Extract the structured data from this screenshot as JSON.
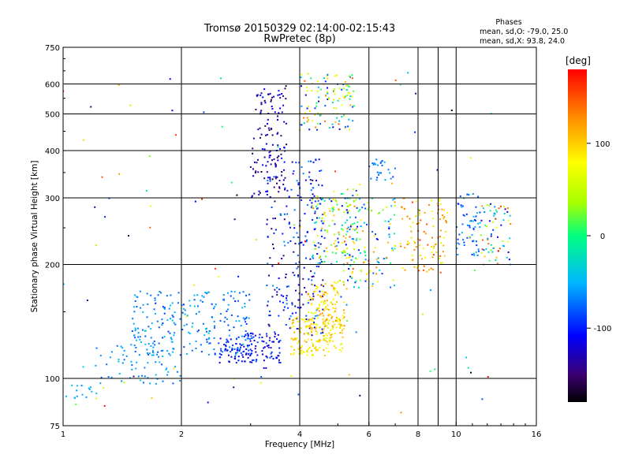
{
  "chart_data": {
    "type": "scatter",
    "title": "Tromsø 20150329 02:14:00-02:15:43",
    "subtitle": "RwPretec (8p)",
    "xlabel": "Frequency [MHz]",
    "ylabel": "Stationary phase Virtual Height [km]",
    "x_scale": "log",
    "y_scale": "log",
    "xlim": [
      1,
      16
    ],
    "ylim": [
      75,
      750
    ],
    "x_ticks": [
      1,
      2,
      4,
      6,
      8,
      10,
      16
    ],
    "x_gridlines": [
      2,
      4,
      6,
      8,
      9,
      10
    ],
    "y_ticks": [
      75,
      100,
      200,
      300,
      400,
      500,
      600,
      750
    ],
    "y_gridlines": [
      100,
      200,
      300,
      400,
      500,
      600
    ],
    "grid": true,
    "stats": {
      "heading": "Phases",
      "line_o": "mean, sd,O: -79.0, 25.0",
      "line_x": "mean, sd,X:  93.8, 24.0"
    },
    "colorbar": {
      "label": "[deg]",
      "range": [
        -180,
        180
      ],
      "ticks": [
        "100",
        "0",
        "-100"
      ],
      "tick_values": [
        100,
        0,
        -100
      ],
      "colormap": "rainbow"
    },
    "clusters": [
      {
        "x": [
          1.0,
          1.25
        ],
        "y": [
          88,
          100
        ],
        "phase": [
          -60,
          -40
        ],
        "n": 14
      },
      {
        "x": [
          1.2,
          2.0
        ],
        "y": [
          96,
          125
        ],
        "phase": [
          -80,
          -40
        ],
        "n": 70
      },
      {
        "x": [
          1.5,
          3.0
        ],
        "y": [
          115,
          170
        ],
        "phase": [
          -90,
          -40
        ],
        "n": 230
      },
      {
        "x": [
          2.5,
          3.6
        ],
        "y": [
          110,
          132
        ],
        "phase": [
          -130,
          -80
        ],
        "n": 140
      },
      {
        "x": [
          3.0,
          3.7
        ],
        "y": [
          300,
          600
        ],
        "phase": [
          -170,
          -100
        ],
        "n": 130
      },
      {
        "x": [
          3.3,
          4.6
        ],
        "y": [
          130,
          380
        ],
        "phase": [
          -150,
          -60
        ],
        "n": 240
      },
      {
        "x": [
          3.8,
          5.2
        ],
        "y": [
          115,
          145
        ],
        "phase": [
          60,
          120
        ],
        "n": 160
      },
      {
        "x": [
          4.2,
          5.2
        ],
        "y": [
          135,
          180
        ],
        "phase": [
          60,
          130
        ],
        "n": 120
      },
      {
        "x": [
          4.0,
          5.5
        ],
        "y": [
          450,
          640
        ],
        "phase": [
          -140,
          150
        ],
        "n": 120
      },
      {
        "x": [
          4.3,
          5.7
        ],
        "y": [
          200,
          320
        ],
        "phase": [
          -120,
          140
        ],
        "n": 130
      },
      {
        "x": [
          5.0,
          7.0
        ],
        "y": [
          170,
          300
        ],
        "phase": [
          -120,
          150
        ],
        "n": 140
      },
      {
        "x": [
          6.0,
          7.0
        ],
        "y": [
          330,
          380
        ],
        "phase": [
          -90,
          -40
        ],
        "n": 25
      },
      {
        "x": [
          7.2,
          9.5
        ],
        "y": [
          190,
          300
        ],
        "phase": [
          60,
          160
        ],
        "n": 110
      },
      {
        "x": [
          10.0,
          11.5
        ],
        "y": [
          210,
          310
        ],
        "phase": [
          -100,
          -40
        ],
        "n": 60
      },
      {
        "x": [
          11.5,
          13.8
        ],
        "y": [
          200,
          290
        ],
        "phase": [
          -140,
          160
        ],
        "n": 70
      },
      {
        "x": [
          1.0,
          13.0
        ],
        "y": [
          80,
          650
        ],
        "phase": [
          -180,
          180
        ],
        "n": 110
      }
    ]
  }
}
